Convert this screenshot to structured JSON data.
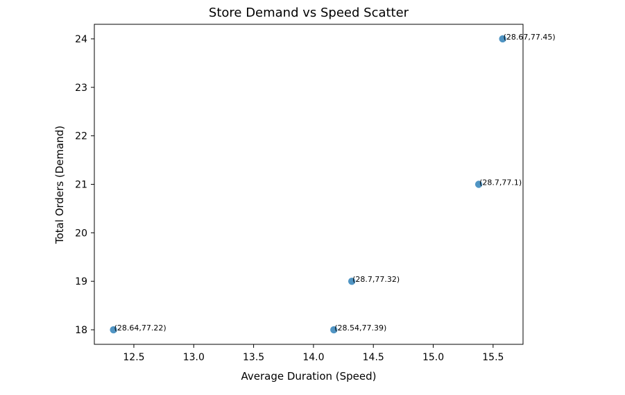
{
  "chart_data": {
    "type": "scatter",
    "title": "Store Demand vs Speed Scatter",
    "xlabel": "Average Duration (Speed)",
    "ylabel": "Total Orders (Demand)",
    "xlim": [
      12.17,
      15.75
    ],
    "ylim": [
      17.7,
      24.3
    ],
    "xticks": [
      "12.5",
      "13.0",
      "13.5",
      "14.0",
      "14.5",
      "15.0",
      "15.5"
    ],
    "yticks": [
      "18",
      "19",
      "20",
      "21",
      "22",
      "23",
      "24"
    ],
    "grid": false,
    "marker_color": "#1f77b4",
    "points": [
      {
        "x": 12.33,
        "y": 18,
        "label": "(28.64,77.22)"
      },
      {
        "x": 14.17,
        "y": 18,
        "label": "(28.54,77.39)"
      },
      {
        "x": 14.32,
        "y": 19,
        "label": "(28.7,77.32)"
      },
      {
        "x": 15.38,
        "y": 21,
        "label": "(28.7,77.1)"
      },
      {
        "x": 15.58,
        "y": 24,
        "label": "(28.67,77.45)"
      }
    ]
  }
}
